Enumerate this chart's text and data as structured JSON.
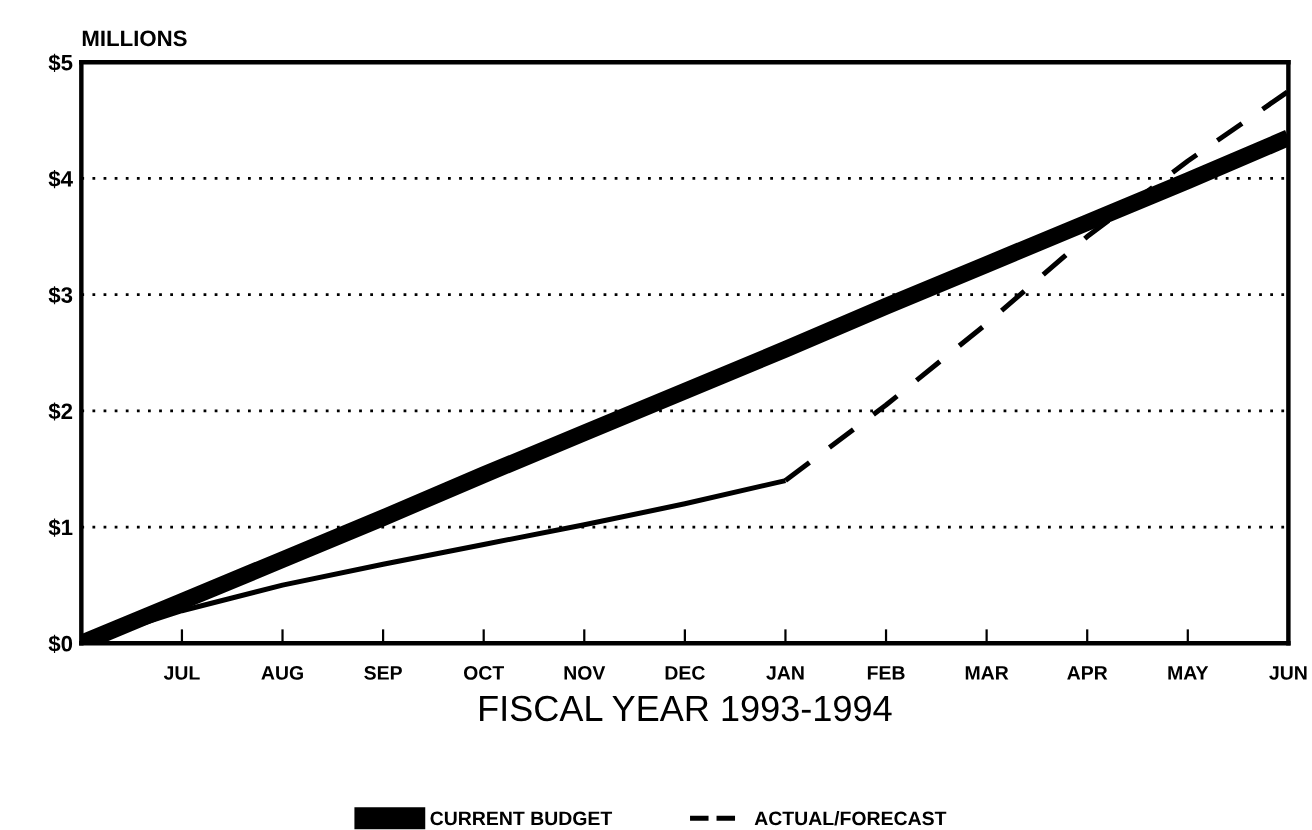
{
  "chart_data": {
    "type": "line",
    "ylabel": "MILLIONS",
    "xlabel": "FISCAL YEAR 1993-1994",
    "categories": [
      null,
      "JUL",
      "AUG",
      "SEP",
      "OCT",
      "NOV",
      "DEC",
      "JAN",
      "FEB",
      "MAR",
      "APR",
      "MAY",
      "JUN"
    ],
    "ylim": [
      0,
      5
    ],
    "yticks": [
      {
        "value": 0,
        "label": "$0"
      },
      {
        "value": 1,
        "label": "$1"
      },
      {
        "value": 2,
        "label": "$2"
      },
      {
        "value": 3,
        "label": "$3"
      },
      {
        "value": 4,
        "label": "$4"
      },
      {
        "value": 5,
        "label": "$5"
      }
    ],
    "grid": "y",
    "legend": "bottom",
    "marker": "none",
    "series": [
      {
        "name": "CURRENT BUDGET",
        "color": "#000000",
        "line_style": "solid",
        "values": [
          0,
          0.36,
          0.72,
          1.08,
          1.45,
          1.81,
          2.17,
          2.53,
          2.9,
          3.26,
          3.62,
          3.98,
          4.35
        ]
      },
      {
        "color": "#000000",
        "line_style": "solid",
        "values": [
          0,
          0.28,
          0.5,
          0.68,
          0.85,
          1.02,
          1.2,
          1.4,
          null,
          null,
          null,
          null,
          null
        ]
      },
      {
        "name": "ACTUAL/FORECAST",
        "color": "#000000",
        "line_style": "dashed",
        "values": [
          null,
          null,
          null,
          null,
          null,
          null,
          null,
          1.4,
          2.05,
          2.75,
          3.5,
          4.15,
          4.75
        ]
      }
    ]
  }
}
